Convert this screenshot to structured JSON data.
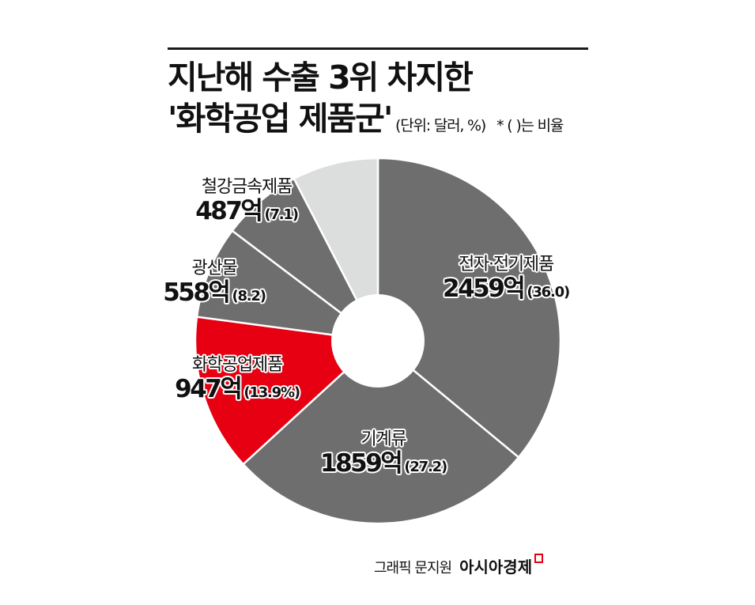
{
  "header": {
    "title_line1": "지난해 수출 3위 차지한",
    "title_line2": "'화학공업 제품군'",
    "unit_note": "(단위: 달러, %)",
    "ratio_note": "* ( )는 비율"
  },
  "labels": [
    {
      "name": "전자·전기제품",
      "amount": "2459억",
      "pct": "(36.0)"
    },
    {
      "name": "기계류",
      "amount": "1859억",
      "pct": "(27.2)"
    },
    {
      "name": "화학공업제품",
      "amount": "947억",
      "pct": "(13.9%)"
    },
    {
      "name": "광산물",
      "amount": "558억",
      "pct": "(8.2)"
    },
    {
      "name": "철강금속제품",
      "amount": "487억",
      "pct": "(7.1)"
    }
  ],
  "footer": {
    "credit": "그래픽 문지원",
    "brand": "아시아경제"
  },
  "colors": {
    "highlight": "#e60012",
    "slice_gray": "#6e6e6e",
    "other_gray": "#dcdddd",
    "separator": "#ffffff"
  },
  "chart_data": {
    "type": "pie",
    "donut": true,
    "title": "지난해 수출 3위 차지한 '화학공업 제품군'",
    "subtitle": "(단위: 달러, %) * ( )는 비율",
    "categories": [
      "전자·전기제품",
      "기계류",
      "화학공업제품",
      "광산물",
      "철강금속제품",
      "기타(unlabeled)"
    ],
    "values_amount_100m_usd": [
      2459,
      1859,
      947,
      558,
      487,
      null
    ],
    "values_percent": [
      36.0,
      27.2,
      13.9,
      8.2,
      7.1,
      7.6
    ],
    "highlighted": "화학공업제품",
    "start_angle": "12 o'clock, clockwise",
    "source": "그래픽 문지원 아시아경제"
  }
}
